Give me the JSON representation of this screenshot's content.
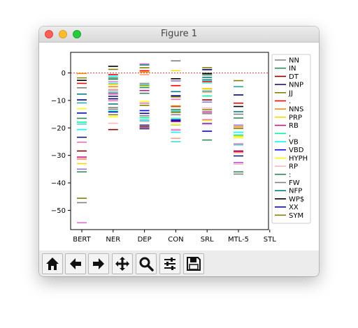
{
  "window": {
    "title": "Figure 1"
  },
  "toolbar": {
    "buttons": [
      {
        "name": "home-button",
        "icon": "home-icon"
      },
      {
        "name": "back-button",
        "icon": "arrow-left-icon"
      },
      {
        "name": "forward-button",
        "icon": "arrow-right-icon"
      },
      {
        "name": "pan-button",
        "icon": "move-icon"
      },
      {
        "name": "zoom-button",
        "icon": "search-icon"
      },
      {
        "name": "configure-subplots-button",
        "icon": "sliders-icon"
      },
      {
        "name": "save-button",
        "icon": "save-icon"
      }
    ]
  },
  "chart_data": {
    "type": "scatter",
    "categories": [
      "BERT",
      "NER",
      "DEP",
      "CON",
      "SRL",
      "MTL-5",
      "STL"
    ],
    "ylim": [
      -57,
      7.5
    ],
    "yticks": [
      0,
      -10,
      -20,
      -30,
      -40,
      -50
    ],
    "ytick_labels": [
      "0",
      "−10",
      "−20",
      "−30",
      "−40",
      "−50"
    ],
    "reference_line": {
      "y": 0,
      "color": "#ff0000",
      "style": "dashed"
    },
    "grid": false,
    "legend_position": "right-outside",
    "series": [
      {
        "name": "NN",
        "color": "#808080",
        "values": [
          -47.2,
          -13.2,
          -15.6,
          -15.2,
          -14.8,
          -36.8
        ]
      },
      {
        "name": "IN",
        "color": "#2e8b57",
        "values": [
          -36.0,
          -1.8,
          -7.4,
          -18.8,
          -24.4,
          -36.0
        ]
      },
      {
        "name": "DT",
        "color": "#8b0000",
        "values": [
          -28.4,
          -20.6,
          -19.6,
          -12.2,
          -9.8,
          -28.4
        ]
      },
      {
        "name": "NNP",
        "color": "#191970",
        "values": [
          -23.4,
          -8.5,
          -19.0,
          -17.4,
          -18.4,
          -30.2
        ]
      },
      {
        "name": "JJ",
        "color": "#808000",
        "values": [
          -45.6,
          -15.2,
          -11.8,
          -14.4,
          -13.4,
          -20.2
        ]
      },
      {
        "name": ".",
        "color": "#ff0000",
        "values": [
          -3.8,
          -0.6,
          0.8,
          -4.6,
          -3.1,
          -11.0
        ]
      },
      {
        "name": "NNS",
        "color": "#ff8c00",
        "values": [
          -0.2,
          -5.0,
          0.3,
          -12.0,
          -5.8,
          -19.6
        ]
      },
      {
        "name": "PRP",
        "color": "#ffd700",
        "values": [
          -33.0,
          -4.2,
          -4.7,
          0.8,
          -5.7,
          -23.0
        ]
      },
      {
        "name": "RB",
        "color": "#c71585",
        "values": [
          -30.6,
          -7.6,
          -6.4,
          -17.7,
          -14.2,
          -28.6
        ]
      },
      {
        "name": ",",
        "color": "#00fa9a",
        "values": [
          -17.9,
          -13.9,
          -16.3,
          -16.6,
          -8.4,
          -22.6
        ]
      },
      {
        "name": "VB",
        "color": "#00ffff",
        "values": [
          -20.6,
          -1.2,
          -17.4,
          -21.6,
          -2.7,
          -21.6
        ]
      },
      {
        "name": "VBD",
        "color": "#0000ff",
        "values": [
          -14.6,
          -14.2,
          -13.7,
          -17.1,
          -21.2,
          -32.6
        ]
      },
      {
        "name": "HYPH",
        "color": "#ffff00",
        "values": [
          -13.0,
          -16.0,
          -10.4,
          -18.7,
          -17.3,
          -23.6
        ]
      },
      {
        "name": "RP",
        "color": "#ffb6c1",
        "values": [
          -31.0,
          -18.3,
          -17.7,
          -20.5,
          -12.8,
          -33.2
        ]
      },
      {
        "name": ":",
        "color": "#2e8b57",
        "values": [
          -16.5,
          -2.3,
          -5.3,
          -13.3,
          -0.7,
          -16.4
        ]
      },
      {
        "name": "FW",
        "color": "#808080",
        "values": [
          -5.4,
          -12.6,
          -3.8,
          4.4,
          -2.4,
          -15.0
        ]
      },
      {
        "name": "NFP",
        "color": "#008080",
        "values": [
          -7.7,
          -11.3,
          2.9,
          -6.8,
          -1.6,
          -14.1
        ]
      },
      {
        "name": "WP$",
        "color": "#000000",
        "values": [
          -2.7,
          2.4,
          -20.3,
          -2.1,
          -0.2,
          -12.2
        ]
      },
      {
        "name": "XX",
        "color": "#000080",
        "values": [
          -9.8,
          -9.4,
          -14.7,
          -8.3,
          1.2,
          -8.0
        ]
      },
      {
        "name": "SYM",
        "color": "#808000",
        "values": [
          -1.8,
          1.3,
          1.9,
          -8.7,
          1.9,
          -2.8
        ]
      },
      {
        "name": "",
        "color": "#da70d6",
        "values": [
          -54.5,
          -3.2,
          3.3,
          -20.8,
          -18.6,
          -32.6
        ]
      },
      {
        "name": "",
        "color": "#9370db",
        "values": [
          -35.0,
          -6.2,
          -20.1,
          -2.9,
          -10.6,
          -19.0
        ]
      },
      {
        "name": "",
        "color": "#ff69b4",
        "values": [
          -25.2,
          -10.1,
          -11.0,
          -9.6,
          -17.0,
          -25.8
        ]
      },
      {
        "name": "",
        "color": "#40e0d0",
        "values": [
          -18.6,
          -3.8,
          -17.1,
          -25.0,
          -3.6,
          -26.2
        ]
      },
      {
        "name": "",
        "color": "#20b2aa",
        "values": [
          -10.9,
          -7.0,
          -4.4,
          -13.9,
          -6.6,
          -5.0
        ]
      },
      {
        "name": "",
        "color": "#ffa07a",
        "values": [
          -31.4,
          -6.0,
          -0.6,
          -23.8,
          -7.0,
          -29.0
        ]
      }
    ]
  }
}
